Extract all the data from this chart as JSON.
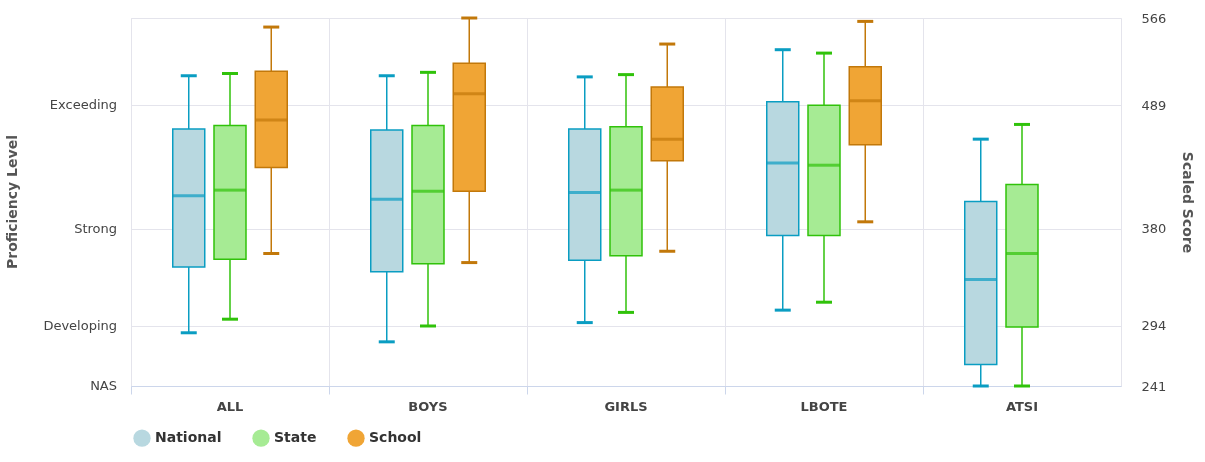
{
  "chart_data": {
    "type": "box",
    "categories": [
      "ALL",
      "BOYS",
      "GIRLS",
      "LBOTE",
      "ATSI"
    ],
    "ylabel": "Scaled Score",
    "annotations": [
      "Proficiency Level",
      "NAS",
      "Developing",
      "Strong",
      "Exceeding"
    ],
    "ylim": [
      241,
      566
    ],
    "yticks": [
      241,
      294,
      380,
      489,
      566
    ],
    "grid": true,
    "legend": "bottom",
    "series": [
      {
        "name": "National",
        "color": "#b8d8e0",
        "boxes": [
          {
            "low": 288,
            "q1": 346,
            "median": 409,
            "q3": 468,
            "high": 515
          },
          {
            "low": 280,
            "q1": 342,
            "median": 406,
            "q3": 467,
            "high": 515
          },
          {
            "low": 297,
            "q1": 352,
            "median": 412,
            "q3": 468,
            "high": 514
          },
          {
            "low": 308,
            "q1": 374,
            "median": 438,
            "q3": 492,
            "high": 538
          },
          {
            "low": 241,
            "q1": 260,
            "median": 335,
            "q3": 404,
            "high": 459
          }
        ]
      },
      {
        "name": "State",
        "color": "#a6eb94",
        "boxes": [
          {
            "low": 300,
            "q1": 353,
            "median": 414,
            "q3": 471,
            "high": 517
          },
          {
            "low": 294,
            "q1": 349,
            "median": 413,
            "q3": 471,
            "high": 518
          },
          {
            "low": 306,
            "q1": 356,
            "median": 414,
            "q3": 470,
            "high": 516
          },
          {
            "low": 315,
            "q1": 374,
            "median": 436,
            "q3": 489,
            "high": 535
          },
          {
            "low": 241,
            "q1": 293,
            "median": 358,
            "q3": 419,
            "high": 472
          }
        ]
      },
      {
        "name": "School",
        "color": "#f0a535",
        "boxes": [
          {
            "low": 358,
            "q1": 434,
            "median": 476,
            "q3": 519,
            "high": 558
          },
          {
            "low": 350,
            "q1": 413,
            "median": 499,
            "q3": 526,
            "high": 566
          },
          {
            "low": 360,
            "q1": 440,
            "median": 459,
            "q3": 505,
            "high": 543
          },
          {
            "low": 386,
            "q1": 454,
            "median": 493,
            "q3": 523,
            "high": 563
          },
          null
        ]
      }
    ]
  }
}
